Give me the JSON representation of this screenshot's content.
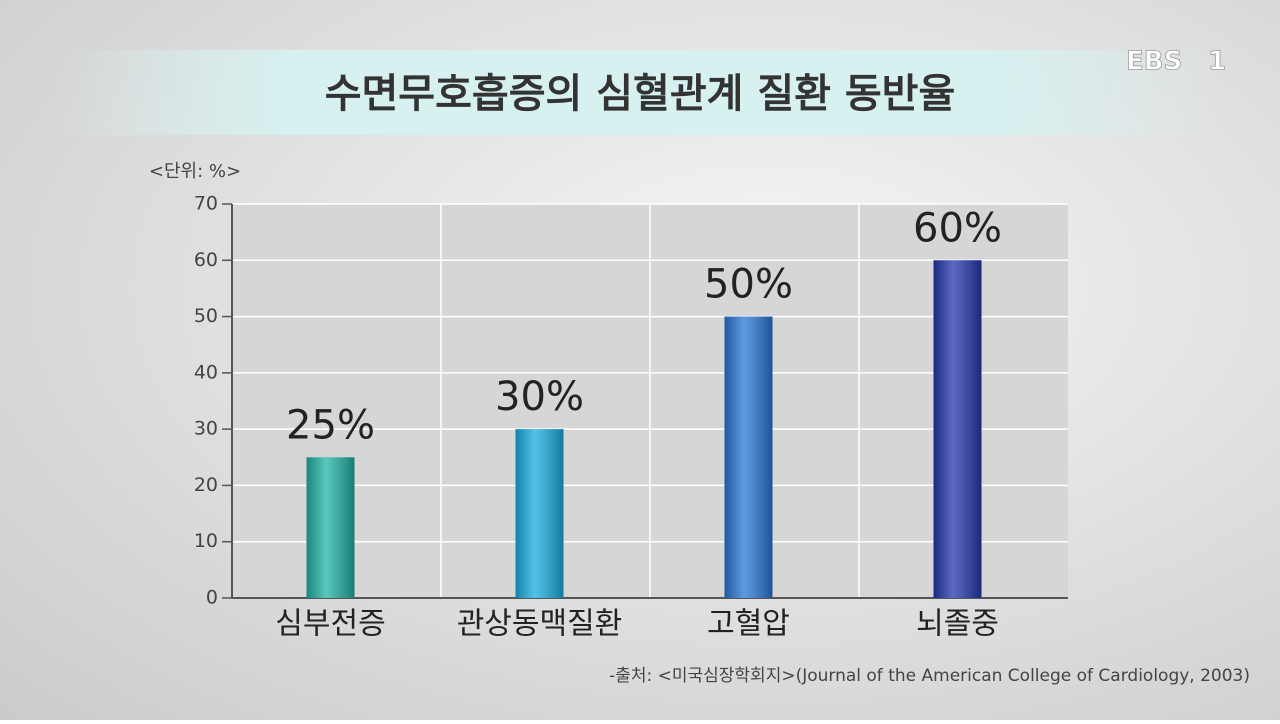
{
  "chart_data": {
    "type": "bar",
    "title": "수면무호흡증의 심혈관계 질환 동반율",
    "unit_label": "<단위: %>",
    "categories": [
      "심부전증",
      "관상동맥질환",
      "고혈압",
      "뇌졸중"
    ],
    "values": [
      25,
      30,
      50,
      60
    ],
    "value_labels": [
      "25%",
      "30%",
      "50%",
      "60%"
    ],
    "colors": [
      "#22b3a6",
      "#1aaee0",
      "#2a78d6",
      "#2438b0"
    ],
    "ylim": [
      0,
      70
    ],
    "yticks": [
      0,
      10,
      20,
      30,
      40,
      50,
      60,
      70
    ],
    "grid": true,
    "source": "-출처: <미국심장학회지>(Journal of the American College of Cardiology, 2003)"
  },
  "logo": {
    "text": "EBS",
    "number": "1"
  }
}
